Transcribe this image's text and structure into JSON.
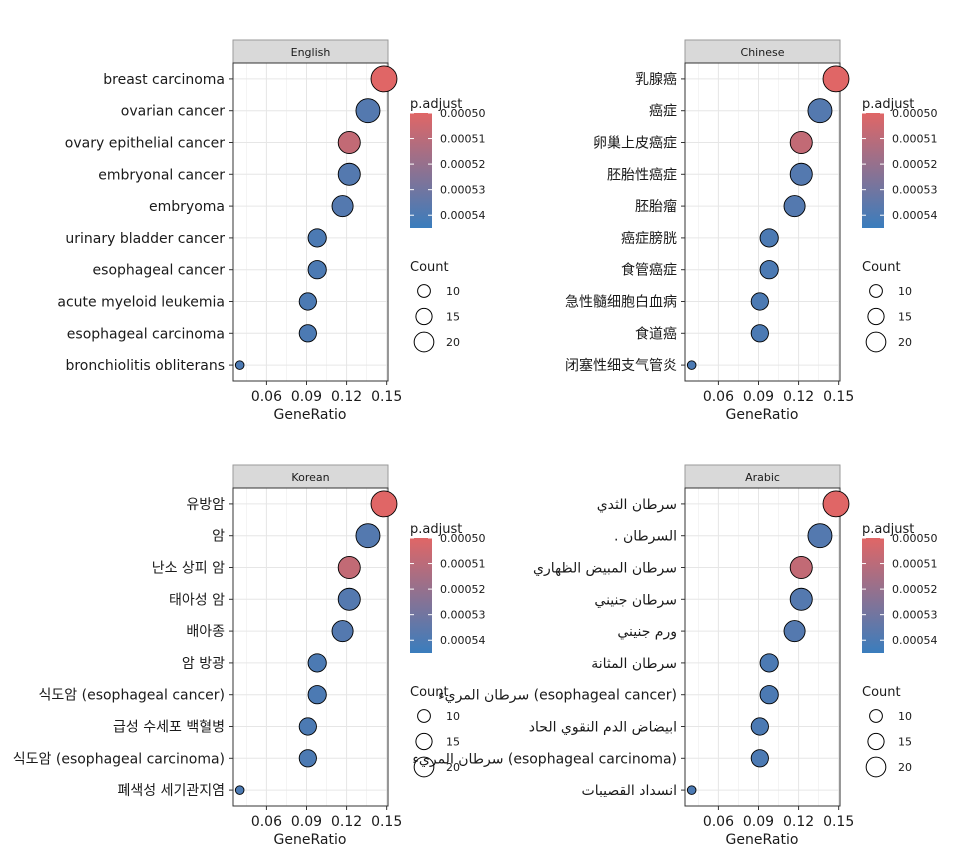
{
  "chart_data": [
    {
      "type": "scatter",
      "title": "English",
      "xlabel": "GeneRatio",
      "ylabel": "",
      "xlim": [
        0.035,
        0.15
      ],
      "xticks": [
        "0.06",
        "0.09",
        "0.12",
        "0.15"
      ],
      "categories": [
        "breast carcinoma",
        "ovarian cancer",
        "ovary epithelial cancer",
        "embryonal cancer",
        "embryoma",
        "urinary bladder cancer",
        "esophageal cancer",
        "acute myeloid leukemia",
        "esophageal carcinoma",
        "bronchiolitis obliterans"
      ],
      "gene_ratio": [
        0.148,
        0.136,
        0.122,
        0.122,
        0.117,
        0.098,
        0.098,
        0.091,
        0.091,
        0.04
      ],
      "count": [
        22,
        20,
        18,
        18,
        17,
        14,
        14,
        13,
        13,
        4
      ],
      "p_adjust": [
        0.0005,
        0.000538,
        0.000508,
        0.000538,
        0.000538,
        0.00054,
        0.00054,
        0.00054,
        0.00054,
        0.00054
      ]
    },
    {
      "type": "scatter",
      "title": "Chinese",
      "xlabel": "GeneRatio",
      "ylabel": "",
      "xlim": [
        0.035,
        0.15
      ],
      "xticks": [
        "0.06",
        "0.09",
        "0.12",
        "0.15"
      ],
      "categories": [
        "乳腺癌",
        "癌症",
        "卵巢上皮癌症",
        "胚胎性癌症",
        "胚胎瘤",
        "癌症膀胱",
        "食管癌症",
        "急性髓细胞白血病",
        "食道癌",
        "闭塞性细支气管炎"
      ],
      "gene_ratio": [
        0.148,
        0.136,
        0.122,
        0.122,
        0.117,
        0.098,
        0.098,
        0.091,
        0.091,
        0.04
      ],
      "count": [
        22,
        20,
        18,
        18,
        17,
        14,
        14,
        13,
        13,
        4
      ],
      "p_adjust": [
        0.0005,
        0.000538,
        0.000508,
        0.000538,
        0.000538,
        0.00054,
        0.00054,
        0.00054,
        0.00054,
        0.00054
      ]
    },
    {
      "type": "scatter",
      "title": "Korean",
      "xlabel": "GeneRatio",
      "ylabel": "",
      "xlim": [
        0.035,
        0.15
      ],
      "xticks": [
        "0.06",
        "0.09",
        "0.12",
        "0.15"
      ],
      "categories": [
        "유방암",
        "암",
        "난소 상피 암",
        "태아성 암",
        "배아종",
        "암 방광",
        "식도암 (esophageal cancer)",
        "급성 수세포 백혈병",
        "식도암 (esophageal carcinoma)",
        "폐색성 세기관지염"
      ],
      "gene_ratio": [
        0.148,
        0.136,
        0.122,
        0.122,
        0.117,
        0.098,
        0.098,
        0.091,
        0.091,
        0.04
      ],
      "count": [
        22,
        20,
        18,
        18,
        17,
        14,
        14,
        13,
        13,
        4
      ],
      "p_adjust": [
        0.0005,
        0.000538,
        0.000508,
        0.000538,
        0.000538,
        0.00054,
        0.00054,
        0.00054,
        0.00054,
        0.00054
      ]
    },
    {
      "type": "scatter",
      "title": "Arabic",
      "xlabel": "GeneRatio",
      "ylabel": "",
      "xlim": [
        0.035,
        0.15
      ],
      "xticks": [
        "0.06",
        "0.09",
        "0.12",
        "0.15"
      ],
      "categories": [
        "سرطان الثدي",
        ". السرطان",
        "سرطان المبيض الظهاري",
        "سرطان جنيني",
        "ورم جنيني",
        "سرطان المثانة",
        "سرطان المريء (esophageal cancer)",
        "ابيضاض الدم النقوي الحاد",
        "سرطان المريء (esophageal carcinoma)",
        "انسداد القصيبات"
      ],
      "gene_ratio": [
        0.148,
        0.136,
        0.122,
        0.122,
        0.117,
        0.098,
        0.098,
        0.091,
        0.091,
        0.04
      ],
      "count": [
        22,
        20,
        18,
        18,
        17,
        14,
        14,
        13,
        13,
        4
      ],
      "p_adjust": [
        0.0005,
        0.000538,
        0.000508,
        0.000538,
        0.000538,
        0.00054,
        0.00054,
        0.00054,
        0.00054,
        0.00054
      ]
    }
  ],
  "legend": {
    "color_title": "p.adjust",
    "color_ticks": [
      "0.00050",
      "0.00051",
      "0.00052",
      "0.00053",
      "0.00054"
    ],
    "color_tick_values": [
      0.0005,
      0.00051,
      0.00052,
      0.00053,
      0.00054
    ],
    "color_range": [
      0.0005,
      0.000545
    ],
    "color_low": "#e06666",
    "color_high": "#3a7dbd",
    "size_title": "Count",
    "size_ticks": [
      "10",
      "15",
      "20"
    ],
    "size_tick_values": [
      10,
      15,
      20
    ]
  }
}
